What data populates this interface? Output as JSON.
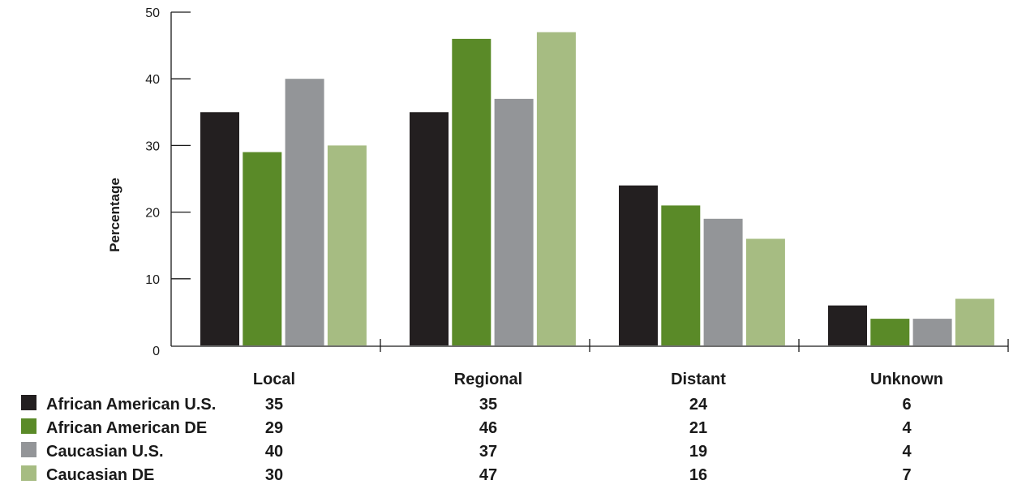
{
  "chart_data": {
    "type": "bar",
    "title": "",
    "xlabel": "",
    "ylabel": "Percentage",
    "ylim": [
      0,
      50
    ],
    "yticks": [
      "0",
      "10",
      "20",
      "30",
      "40",
      "50"
    ],
    "categories": [
      "Local",
      "Regional",
      "Distant",
      "Unknown"
    ],
    "series": [
      {
        "name": "African American U.S.",
        "color": "#231f20",
        "values": [
          35,
          35,
          24,
          6
        ]
      },
      {
        "name": "African American DE",
        "color": "#5a8a28",
        "values": [
          29,
          46,
          21,
          4
        ]
      },
      {
        "name": "Caucasian U.S.",
        "color": "#939598",
        "values": [
          40,
          37,
          19,
          4
        ]
      },
      {
        "name": "Caucasian DE",
        "color": "#a6bc82",
        "values": [
          30,
          47,
          16,
          7
        ]
      }
    ],
    "grid": false,
    "legend": "data-table-below"
  }
}
